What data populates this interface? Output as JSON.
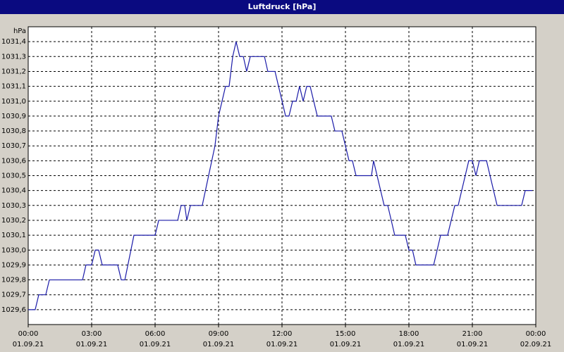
{
  "window_title": "Luftdruck [hPa]",
  "chart_data": {
    "type": "line",
    "y_unit": "hPa",
    "grid": true,
    "ylim": [
      1029.5,
      1031.5
    ],
    "yticks": [
      {
        "value": 1029.6,
        "label": "1029,6"
      },
      {
        "value": 1029.7,
        "label": "1029,7"
      },
      {
        "value": 1029.8,
        "label": "1029,8"
      },
      {
        "value": 1029.9,
        "label": "1029,9"
      },
      {
        "value": 1030.0,
        "label": "1030,0"
      },
      {
        "value": 1030.1,
        "label": "1030,1"
      },
      {
        "value": 1030.2,
        "label": "1030,2"
      },
      {
        "value": 1030.3,
        "label": "1030,3"
      },
      {
        "value": 1030.4,
        "label": "1030,4"
      },
      {
        "value": 1030.5,
        "label": "1030,5"
      },
      {
        "value": 1030.6,
        "label": "1030,6"
      },
      {
        "value": 1030.7,
        "label": "1030,7"
      },
      {
        "value": 1030.8,
        "label": "1030,8"
      },
      {
        "value": 1030.9,
        "label": "1030,9"
      },
      {
        "value": 1031.0,
        "label": "1031,0"
      },
      {
        "value": 1031.1,
        "label": "1031,1"
      },
      {
        "value": 1031.2,
        "label": "1031,2"
      },
      {
        "value": 1031.3,
        "label": "1031,3"
      },
      {
        "value": 1031.4,
        "label": "1031,4"
      }
    ],
    "xlim": [
      0,
      24
    ],
    "xticks": [
      {
        "value": 0,
        "label": "00:00",
        "date": "01.09.21"
      },
      {
        "value": 3,
        "label": "03:00",
        "date": "01.09.21"
      },
      {
        "value": 6,
        "label": "06:00",
        "date": "01.09.21"
      },
      {
        "value": 9,
        "label": "09:00",
        "date": "01.09.21"
      },
      {
        "value": 12,
        "label": "12:00",
        "date": "01.09.21"
      },
      {
        "value": 15,
        "label": "15:00",
        "date": "01.09.21"
      },
      {
        "value": 18,
        "label": "18:00",
        "date": "01.09.21"
      },
      {
        "value": 21,
        "label": "21:00",
        "date": "01.09.21"
      },
      {
        "value": 24,
        "label": "00:00",
        "date": "02.09.21"
      }
    ],
    "series": [
      {
        "color": "#1a1aa8",
        "x": [
          0,
          0.33,
          0.5,
          0.83,
          1,
          2.57,
          2.73,
          3,
          3.17,
          3.33,
          3.5,
          4.23,
          4.4,
          4.57,
          5,
          6,
          6.17,
          7.07,
          7.23,
          7.4,
          7.5,
          7.67,
          8.23,
          8.83,
          9,
          9.33,
          9.5,
          9.67,
          9.83,
          10,
          10.17,
          10.33,
          10.5,
          11.17,
          11.33,
          11.67,
          12.17,
          12.33,
          12.5,
          12.67,
          12.83,
          13,
          13.17,
          13.33,
          13.67,
          14.33,
          14.5,
          14.83,
          15.17,
          15.33,
          15.5,
          16.23,
          16.33,
          16.83,
          17,
          17.33,
          17.83,
          18,
          18.17,
          18.33,
          19.17,
          19.5,
          19.83,
          20.17,
          20.33,
          20.83,
          21,
          21.17,
          21.33,
          21.67,
          22.17,
          23.33,
          23.5,
          23.83
        ],
        "values": [
          1029.6,
          1029.6,
          1029.7,
          1029.7,
          1029.8,
          1029.8,
          1029.9,
          1029.9,
          1030.0,
          1030.0,
          1029.9,
          1029.9,
          1029.8,
          1029.8,
          1030.1,
          1030.1,
          1030.2,
          1030.2,
          1030.3,
          1030.3,
          1030.2,
          1030.3,
          1030.3,
          1030.7,
          1030.9,
          1031.1,
          1031.1,
          1031.3,
          1031.4,
          1031.3,
          1031.3,
          1031.2,
          1031.3,
          1031.3,
          1031.2,
          1031.2,
          1030.9,
          1030.9,
          1031.0,
          1031.0,
          1031.1,
          1031.0,
          1031.1,
          1031.1,
          1030.9,
          1030.9,
          1030.8,
          1030.8,
          1030.6,
          1030.6,
          1030.5,
          1030.5,
          1030.6,
          1030.3,
          1030.3,
          1030.1,
          1030.1,
          1030.0,
          1030.0,
          1029.9,
          1029.9,
          1030.1,
          1030.1,
          1030.3,
          1030.3,
          1030.6,
          1030.6,
          1030.5,
          1030.6,
          1030.6,
          1030.3,
          1030.3,
          1030.4,
          1030.4
        ]
      }
    ]
  }
}
